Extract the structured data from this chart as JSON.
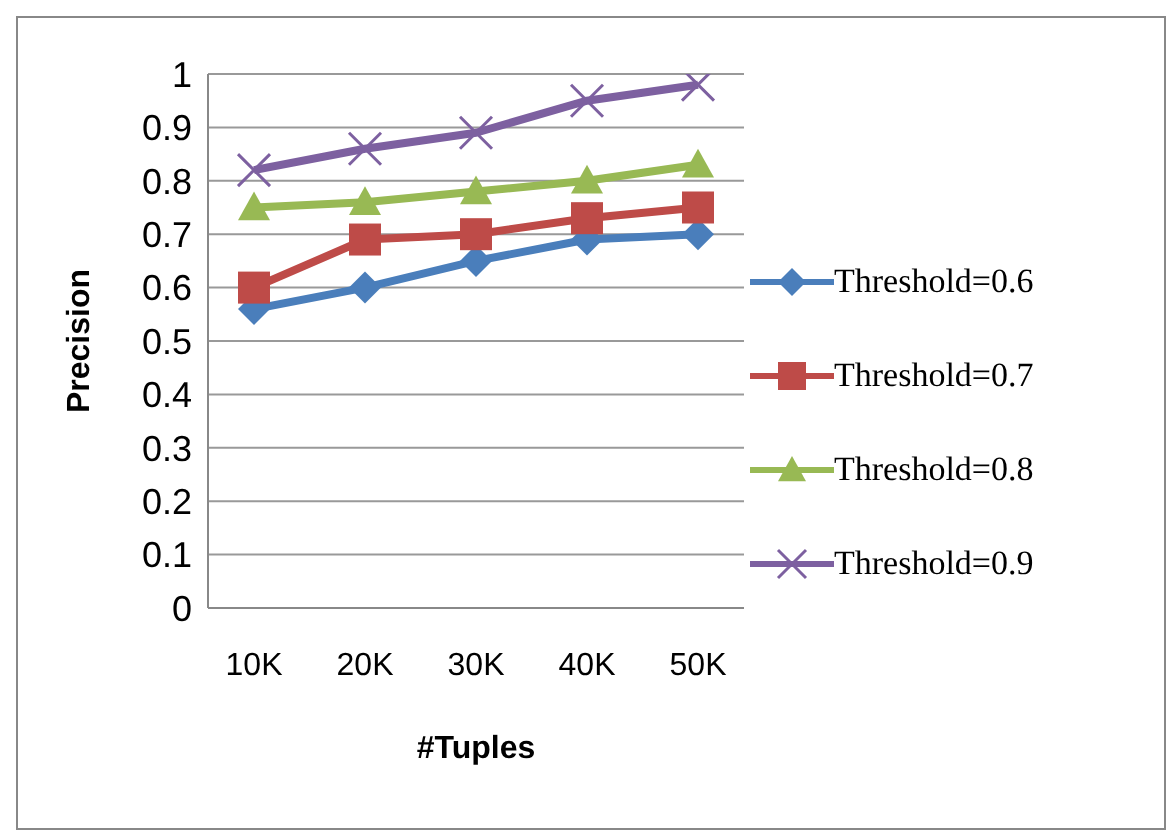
{
  "chart_data": {
    "type": "line",
    "xlabel": "#Tuples",
    "ylabel": "Precision",
    "categories": [
      "10K",
      "20K",
      "30K",
      "40K",
      "50K"
    ],
    "series": [
      {
        "name": "Threshold=0.6",
        "color": "#4a7ebb",
        "marker": "diamond",
        "values": [
          0.56,
          0.6,
          0.65,
          0.69,
          0.7
        ]
      },
      {
        "name": "Threshold=0.7",
        "color": "#be4b48",
        "marker": "square",
        "values": [
          0.6,
          0.69,
          0.7,
          0.73,
          0.75
        ]
      },
      {
        "name": "Threshold=0.8",
        "color": "#98b954",
        "marker": "triangle",
        "values": [
          0.75,
          0.76,
          0.78,
          0.8,
          0.83
        ]
      },
      {
        "name": "Threshold=0.9",
        "color": "#7d60a0",
        "marker": "cross",
        "values": [
          0.82,
          0.86,
          0.89,
          0.95,
          0.98
        ]
      }
    ],
    "ylim": [
      0,
      1
    ],
    "yticks": [
      0,
      0.1,
      0.2,
      0.3,
      0.4,
      0.5,
      0.6,
      0.7,
      0.8,
      0.9,
      1
    ],
    "grid": "y",
    "legend": "right"
  }
}
